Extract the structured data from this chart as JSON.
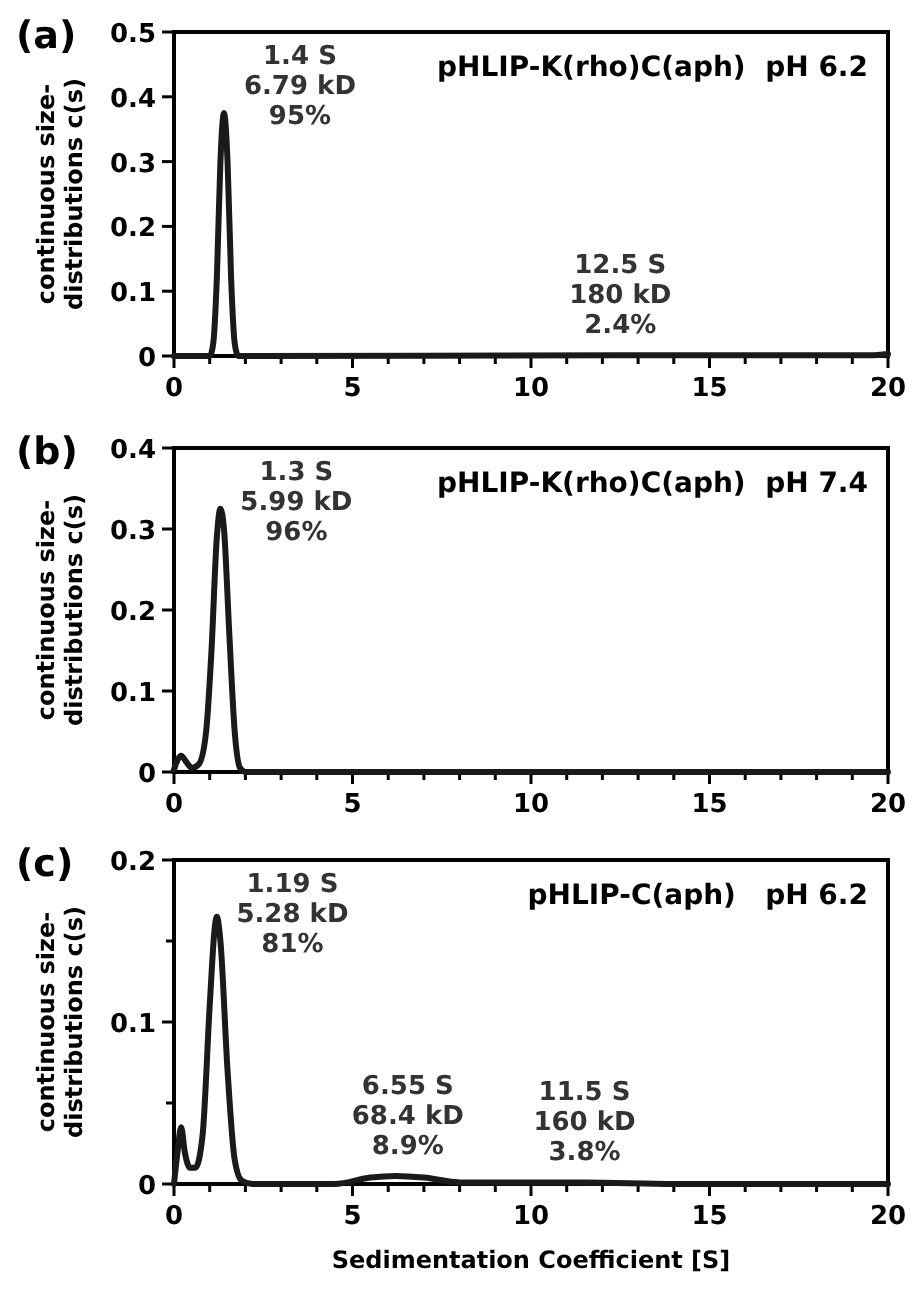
{
  "chart_data": [
    {
      "type": "line",
      "title": "(a)",
      "ylabel": "continuous size-\ndistributions c(s)",
      "xlim": [
        0,
        20
      ],
      "ylim": [
        0,
        0.5
      ],
      "xticks": [
        0,
        {
          "value": 1,
          "label": null
        },
        {
          "value": 2,
          "label": null
        },
        {
          "value": 3,
          "label": null
        },
        {
          "value": 4,
          "label": null
        },
        5,
        {
          "value": 6,
          "label": null
        },
        {
          "value": 7,
          "label": null
        },
        {
          "value": 8,
          "label": null
        },
        {
          "value": 9,
          "label": null
        },
        10,
        {
          "value": 11,
          "label": null
        },
        {
          "value": 12,
          "label": null
        },
        {
          "value": 13,
          "label": null
        },
        {
          "value": 14,
          "label": null
        },
        15,
        {
          "value": 16,
          "label": null
        },
        {
          "value": 17,
          "label": null
        },
        {
          "value": 18,
          "label": null
        },
        {
          "value": 19,
          "label": null
        },
        20
      ],
      "yticks": [
        0,
        0.1,
        0.2,
        0.3,
        0.4,
        0.5
      ],
      "series": [
        {
          "color": "#1a1a1a",
          "x": [
            0,
            1.0,
            1.1,
            1.2,
            1.3,
            1.4,
            1.5,
            1.6,
            1.7,
            1.8,
            12.5,
            19.5,
            20
          ],
          "values": [
            0,
            0,
            0.02,
            0.12,
            0.3,
            0.375,
            0.3,
            0.12,
            0.02,
            0,
            0.001,
            0.001,
            0.003
          ]
        }
      ],
      "annotations": [
        "pHLIP-K(rho)C(aph)  pH 6.2",
        {
          "text": "1.4 S\n6.79 kD\n95%",
          "x": 1.4,
          "y": 0.375
        },
        {
          "text": "12.5 S\n180 kD\n2.4%",
          "x": 12.5,
          "y": 0.001
        }
      ],
      "grid": false,
      "marker": "none",
      "line_style": "solid"
    },
    {
      "type": "line",
      "title": "(b)",
      "ylabel": "continuous size-\ndistributions c(s)",
      "xlim": [
        0,
        20
      ],
      "ylim": [
        0,
        0.4
      ],
      "xticks": [
        0,
        {
          "value": 1,
          "label": null
        },
        {
          "value": 2,
          "label": null
        },
        {
          "value": 3,
          "label": null
        },
        {
          "value": 4,
          "label": null
        },
        5,
        {
          "value": 6,
          "label": null
        },
        {
          "value": 7,
          "label": null
        },
        {
          "value": 8,
          "label": null
        },
        {
          "value": 9,
          "label": null
        },
        10,
        {
          "value": 11,
          "label": null
        },
        {
          "value": 12,
          "label": null
        },
        {
          "value": 13,
          "label": null
        },
        {
          "value": 14,
          "label": null
        },
        15,
        {
          "value": 16,
          "label": null
        },
        {
          "value": 17,
          "label": null
        },
        {
          "value": 18,
          "label": null
        },
        {
          "value": 19,
          "label": null
        },
        20
      ],
      "yticks": [
        0,
        0.1,
        0.2,
        0.3,
        0.4
      ],
      "series": [
        {
          "color": "#1a1a1a",
          "x": [
            0,
            0.1,
            0.2,
            0.35,
            0.5,
            0.7,
            0.9,
            1.05,
            1.2,
            1.3,
            1.4,
            1.55,
            1.7,
            1.85,
            2.0,
            20
          ],
          "values": [
            0.003,
            0.015,
            0.02,
            0.012,
            0.005,
            0.01,
            0.05,
            0.15,
            0.29,
            0.325,
            0.3,
            0.17,
            0.05,
            0.005,
            0,
            0
          ]
        }
      ],
      "annotations": [
        "pHLIP-K(rho)C(aph)  pH 7.4",
        {
          "text": "1.3 S\n5.99 kD\n96%",
          "x": 1.3,
          "y": 0.325
        }
      ],
      "grid": false,
      "marker": "none",
      "line_style": "solid"
    },
    {
      "type": "line",
      "title": "(c)",
      "ylabel": "continuous size-\ndistributions c(s)",
      "xlabel": "Sedimentation Coefficient [S]",
      "xlim": [
        0,
        20
      ],
      "ylim": [
        0,
        0.2
      ],
      "xticks": [
        0,
        {
          "value": 1,
          "label": null
        },
        {
          "value": 2,
          "label": null
        },
        {
          "value": 3,
          "label": null
        },
        {
          "value": 4,
          "label": null
        },
        5,
        {
          "value": 6,
          "label": null
        },
        {
          "value": 7,
          "label": null
        },
        {
          "value": 8,
          "label": null
        },
        {
          "value": 9,
          "label": null
        },
        10,
        {
          "value": 11,
          "label": null
        },
        {
          "value": 12,
          "label": null
        },
        {
          "value": 13,
          "label": null
        },
        {
          "value": 14,
          "label": null
        },
        15,
        {
          "value": 16,
          "label": null
        },
        {
          "value": 17,
          "label": null
        },
        {
          "value": 18,
          "label": null
        },
        {
          "value": 19,
          "label": null
        },
        20
      ],
      "yticks": [
        0,
        {
          "value": 0.05,
          "label": null
        },
        0.1,
        {
          "value": 0.15,
          "label": null
        },
        0.2
      ],
      "series": [
        {
          "color": "#1a1a1a",
          "x": [
            0,
            0.1,
            0.2,
            0.3,
            0.45,
            0.6,
            0.8,
            1.0,
            1.15,
            1.2,
            1.3,
            1.5,
            1.7,
            1.9,
            2.2,
            4.5,
            5.5,
            6.2,
            7,
            8,
            9,
            11.5,
            14,
            20
          ],
          "values": [
            0,
            0.02,
            0.035,
            0.02,
            0.01,
            0.01,
            0.03,
            0.11,
            0.16,
            0.165,
            0.15,
            0.07,
            0.015,
            0.002,
            0,
            0,
            0.004,
            0.005,
            0.004,
            0.001,
            0.001,
            0.001,
            0,
            0
          ]
        }
      ],
      "annotations": [
        "pHLIP-C(aph)   pH 6.2",
        {
          "text": "1.19 S\n5.28 kD\n81%",
          "x": 1.19,
          "y": 0.165
        },
        {
          "text": "6.55 S\n68.4 kD\n8.9%",
          "x": 6.55,
          "y": 0.005
        },
        {
          "text": "11.5 S\n160 kD\n3.8%",
          "x": 11.5,
          "y": 0.001
        }
      ],
      "grid": false,
      "marker": "none",
      "line_style": "solid"
    }
  ]
}
